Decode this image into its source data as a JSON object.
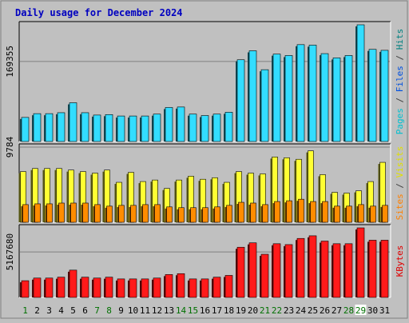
{
  "chart_data": {
    "type": "bar",
    "title": "Daily usage for December 2024",
    "x": [
      "1",
      "2",
      "3",
      "4",
      "5",
      "6",
      "7",
      "8",
      "9",
      "10",
      "11",
      "12",
      "13",
      "14",
      "15",
      "16",
      "17",
      "18",
      "19",
      "20",
      "21",
      "22",
      "23",
      "24",
      "25",
      "26",
      "27",
      "28",
      "29",
      "30",
      "31"
    ],
    "x_label_colors": [
      "#007000",
      "#000000",
      "#000000",
      "#000000",
      "#000000",
      "#000000",
      "#007000",
      "#007000",
      "#000000",
      "#000000",
      "#000000",
      "#000000",
      "#000000",
      "#007000",
      "#007000",
      "#000000",
      "#000000",
      "#000000",
      "#000000",
      "#000000",
      "#007000",
      "#007000",
      "#000000",
      "#000000",
      "#000000",
      "#000000",
      "#000000",
      "#007000",
      "#007000",
      "#000000",
      "#000000"
    ],
    "x_label_highlight": "29",
    "panels": [
      {
        "ytick": "169355",
        "ytick_value": 169355,
        "ymax": 247000,
        "label_parts": [
          {
            "text": "Pages",
            "color": "#00c0d0"
          },
          {
            "text": " / ",
            "color": "#404040"
          },
          {
            "text": "Files",
            "color": "#0050e0"
          },
          {
            "text": " / ",
            "color": "#404040"
          },
          {
            "text": "Hits",
            "color": "#008080"
          }
        ],
        "series": [
          {
            "name": "Hits",
            "color": "#33ddff",
            "values": [
              51000,
              59000,
              59000,
              61000,
              82000,
              61000,
              56000,
              57000,
              54000,
              54000,
              54000,
              58000,
              72000,
              73000,
              58000,
              55000,
              58000,
              62000,
              173000,
              192000,
              152000,
              185000,
              182000,
              205000,
              204000,
              186000,
              177000,
              182000,
              247000,
              195000,
              193000
            ]
          }
        ]
      },
      {
        "ytick": "9784",
        "ytick_value": 9784,
        "ymax": 9784,
        "label_parts": [
          {
            "text": "Sites",
            "color": "#ff8000"
          },
          {
            "text": " / ",
            "color": "#404040"
          },
          {
            "text": "Visits",
            "color": "#e0e000"
          }
        ],
        "series": [
          {
            "name": "Visits",
            "color": "#ffff33",
            "values": [
              6600,
              7000,
              7000,
              7000,
              6800,
              6600,
              6400,
              6800,
              5200,
              6500,
              5300,
              5500,
              4400,
              5500,
              6000,
              5600,
              5800,
              5200,
              6600,
              6400,
              6300,
              8500,
              8400,
              8200,
              9300,
              6200,
              3900,
              3800,
              4100,
              5300,
              7800
            ]
          },
          {
            "name": "Sites",
            "color": "#ff8c00",
            "values": [
              2300,
              2400,
              2400,
              2500,
              2500,
              2500,
              2300,
              2100,
              2200,
              2200,
              2300,
              2300,
              2000,
              1900,
              1900,
              1900,
              2000,
              2200,
              2600,
              2500,
              2300,
              2700,
              2800,
              3000,
              2700,
              2700,
              2100,
              2100,
              2300,
              2100,
              2200
            ]
          }
        ]
      },
      {
        "ytick": "5167680",
        "ytick_value": 5167680,
        "ymax": 7900000,
        "label_parts": [
          {
            "text": "KBytes",
            "color": "#e00000"
          }
        ],
        "series": [
          {
            "name": "KBytes",
            "color": "#ff1a1a",
            "values": [
              1900000,
              2200000,
              2200000,
              2300000,
              3100000,
              2300000,
              2200000,
              2300000,
              2100000,
              2100000,
              2100000,
              2200000,
              2600000,
              2700000,
              2100000,
              2100000,
              2300000,
              2500000,
              5700000,
              6200000,
              4900000,
              6100000,
              6000000,
              6700000,
              7000000,
              6400000,
              6100000,
              6100000,
              7900000,
              6500000,
              6500000
            ]
          }
        ]
      }
    ],
    "grid": true,
    "legend": "right"
  },
  "colors": {
    "background": "#c0c0c0",
    "plot_bg": "#c0c0c0",
    "title": "#0000c0",
    "gridline": "#808080"
  }
}
